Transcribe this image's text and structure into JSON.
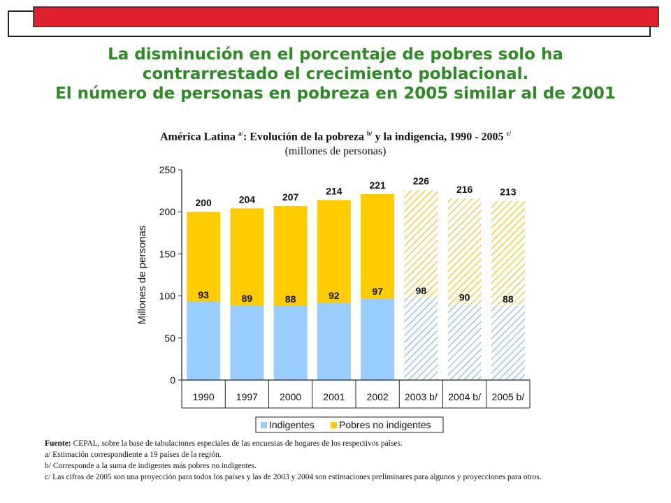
{
  "headline": {
    "line1": "La disminución en el porcentaje de pobres solo ha",
    "line2": "contrarrestado el crecimiento poblacional.",
    "line3": "El número de personas en pobreza en 2005 similar al de 2001"
  },
  "chart_title": {
    "prefix": "América  Latina ",
    "note_a": "a/",
    "middle": ": Evolución de la pobreza ",
    "note_b": "b/",
    "suffix": " y la indigencia, 1990 - 2005 ",
    "note_c": "c/"
  },
  "chart_subtitle": "(millones de personas)",
  "colors": {
    "green_title": "#2e8a24",
    "banner_red": "#e0202a",
    "indigentes": "#99ccff",
    "pobres": "#ffcc00",
    "hatch_indigentes": "#7ab0e0",
    "hatch_pobres": "#f0c000"
  },
  "chart_data": {
    "type": "bar",
    "stacked": true,
    "categories": [
      "1990",
      "1997",
      "2000",
      "2001",
      "2002",
      "2003 b/",
      "2004 b/",
      "2005 b/"
    ],
    "projected_from_index": 5,
    "series": [
      {
        "name": "Indigentes",
        "values": [
          93,
          89,
          88,
          92,
          97,
          98,
          90,
          88
        ]
      },
      {
        "name": "Pobres no indigentes",
        "values": [
          107,
          115,
          119,
          122,
          124,
          128,
          126,
          125
        ]
      }
    ],
    "totals": [
      200,
      204,
      207,
      214,
      221,
      226,
      216,
      213
    ],
    "ylabel": "Millones de personas",
    "ylim": [
      0,
      250
    ],
    "yticks": [
      0,
      50,
      100,
      150,
      200,
      250
    ],
    "legend_position": "bottom"
  },
  "notes": {
    "source_label": "Fuente:",
    "source_text": " CEPAL, sobre la base de tabulaciones especiales de las encuestas de hogares de los respectivos países.",
    "a": "a/ Estimación correspondiente a 19 países de la región.",
    "b": "b/ Corresponde a la suma de indigentes más pobres no indigentes.",
    "c": "c/ Las cifras de 2005 son una proyección para todos los países y las de 2003 y 2004 son estimaciones preliminares para algunos y proyecciones para otros."
  }
}
